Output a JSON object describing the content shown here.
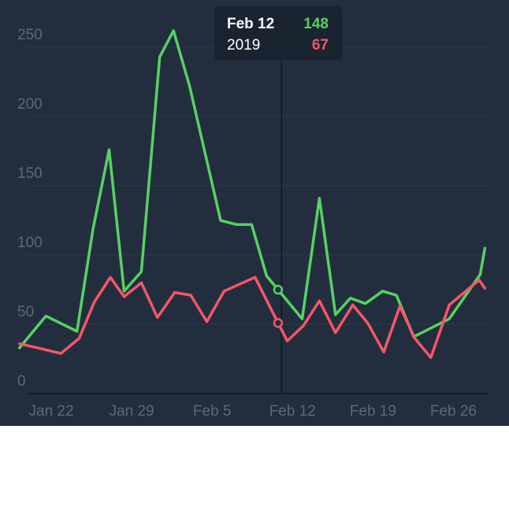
{
  "chart_data": {
    "type": "line",
    "xlim": [
      18.5,
      62.8
    ],
    "xticks": [
      {
        "value": 22,
        "label": "Jan 22"
      },
      {
        "value": 29,
        "label": "Jan 29"
      },
      {
        "value": 36,
        "label": "Feb 5"
      },
      {
        "value": 43,
        "label": "Feb 12"
      },
      {
        "value": 50,
        "label": "Feb 19"
      },
      {
        "value": 57,
        "label": "Feb 26"
      }
    ],
    "ylim": [
      0,
      250
    ],
    "yticks": [
      0,
      50,
      100,
      150,
      200,
      250
    ],
    "grid": true,
    "series": [
      {
        "color": "#57d163",
        "x": [
          20.2,
          22.5,
          25.2,
          26.6,
          28.0,
          29.3,
          30.8,
          32.4,
          33.6,
          35.0,
          37.7,
          39.1,
          40.4,
          41.7,
          42.7,
          44.8,
          46.3,
          47.7,
          49.0,
          50.3,
          51.8,
          53.0,
          54.5,
          57.6,
          60.3,
          60.7
        ],
        "values": [
          33,
          56,
          45,
          119,
          176,
          74,
          88,
          243,
          262,
          222,
          125,
          122,
          122,
          85,
          75,
          54,
          141,
          57,
          69,
          65,
          74,
          71,
          41,
          54,
          86,
          105
        ]
      },
      {
        "color": "#f4566b",
        "x": [
          20.2,
          22.3,
          23.8,
          25.4,
          26.7,
          28.1,
          29.3,
          30.8,
          32.2,
          33.7,
          35.1,
          36.5,
          38.0,
          40.7,
          42.7,
          43.5,
          44.9,
          46.3,
          47.7,
          49.2,
          50.5,
          51.9,
          53.3,
          54.6,
          56.0,
          57.6,
          60.2,
          60.7
        ],
        "values": [
          36,
          32,
          29,
          40,
          66,
          84,
          70,
          80,
          55,
          73,
          71,
          52,
          74,
          84,
          51,
          38,
          49,
          67,
          44,
          64,
          51,
          30,
          63,
          40,
          26,
          64,
          82,
          76
        ]
      }
    ],
    "crosshair": {
      "x": 43,
      "markers": [
        14,
        14
      ]
    },
    "tooltip": {
      "rows": [
        {
          "label": "Feb 12",
          "value": 148
        },
        {
          "label": "2019",
          "value": 67
        }
      ]
    }
  }
}
